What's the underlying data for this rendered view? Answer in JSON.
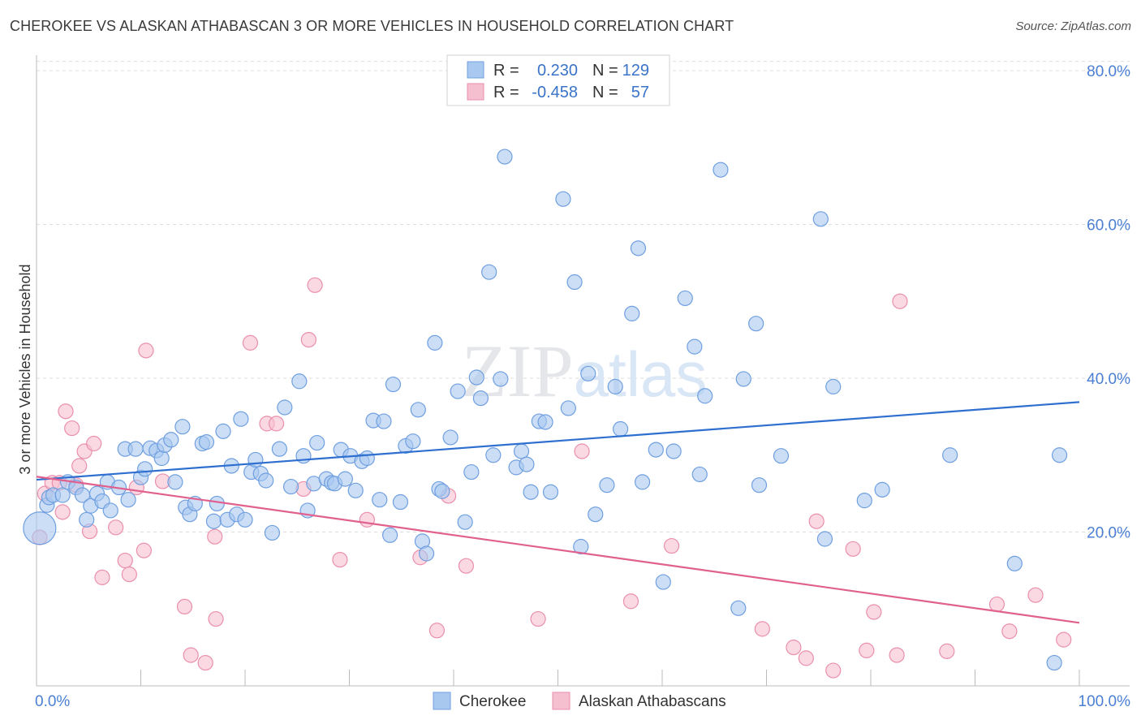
{
  "title": "CHEROKEE VS ALASKAN ATHABASCAN 3 OR MORE VEHICLES IN HOUSEHOLD CORRELATION CHART",
  "source": "Source: ZipAtlas.com",
  "watermark": "ZIPatlas",
  "colors": {
    "blue_fill": "#a9c8f0",
    "blue_stroke": "#6f9fe0",
    "blue_line": "#2f6fd0",
    "pink_fill": "#f6bfd0",
    "pink_stroke": "#ea8fac",
    "pink_line": "#e0608e",
    "tick_color": "#4a7fd4",
    "grid": "#dddddd"
  },
  "legend": {
    "rows": [
      {
        "r_label": "R =",
        "r_value": "0.230",
        "n_label": "N =",
        "n_value": "129"
      },
      {
        "r_label": "R =",
        "r_value": "-0.458",
        "n_label": "N =",
        "n_value": "57"
      }
    ]
  },
  "bottom_legend": [
    "Cherokee",
    "Alaskan Athabascans"
  ],
  "chart_data": {
    "type": "scatter",
    "xlabel": "",
    "ylabel": "3 or more Vehicles in Household",
    "xlim": [
      0,
      100
    ],
    "ylim": [
      0,
      82
    ],
    "x_tick_labels": [
      "0.0%",
      "100.0%"
    ],
    "y_ticks": [
      20,
      40,
      60,
      80
    ],
    "y_tick_labels": [
      "20.0%",
      "40.0%",
      "60.0%",
      "80.0%"
    ],
    "grid": true,
    "legend_position": "top-center",
    "series": [
      {
        "name": "Cherokee",
        "trend": {
          "x0": 0,
          "y0": 26.8,
          "x1": 100,
          "y1": 36.9
        },
        "points": [
          [
            0.3,
            20.5
          ],
          [
            1,
            23.5
          ],
          [
            1.2,
            24.5
          ],
          [
            1.6,
            24.8
          ],
          [
            2.5,
            24.8
          ],
          [
            3,
            26.5
          ],
          [
            3.8,
            25.8
          ],
          [
            4.4,
            24.8
          ],
          [
            4.8,
            21.6
          ],
          [
            5.2,
            23.4
          ],
          [
            5.8,
            25
          ],
          [
            6.3,
            24
          ],
          [
            6.8,
            26.5
          ],
          [
            7.1,
            22.8
          ],
          [
            7.9,
            25.8
          ],
          [
            8.5,
            30.8
          ],
          [
            8.8,
            24.2
          ],
          [
            9.5,
            30.8
          ],
          [
            10,
            27.1
          ],
          [
            10.4,
            28.2
          ],
          [
            10.9,
            30.9
          ],
          [
            11.5,
            30.6
          ],
          [
            12,
            29.6
          ],
          [
            12.3,
            31.3
          ],
          [
            12.9,
            32
          ],
          [
            13.3,
            26.5
          ],
          [
            14,
            33.7
          ],
          [
            14.3,
            23.2
          ],
          [
            14.7,
            22.3
          ],
          [
            15.2,
            23.7
          ],
          [
            15.9,
            31.5
          ],
          [
            16.3,
            31.7
          ],
          [
            17,
            21.4
          ],
          [
            17.3,
            23.7
          ],
          [
            17.9,
            33.1
          ],
          [
            18.3,
            21.6
          ],
          [
            18.7,
            28.6
          ],
          [
            19.2,
            22.3
          ],
          [
            19.6,
            34.7
          ],
          [
            20,
            21.6
          ],
          [
            20.6,
            27.8
          ],
          [
            21,
            29.4
          ],
          [
            21.5,
            27.6
          ],
          [
            22,
            26.7
          ],
          [
            22.6,
            19.9
          ],
          [
            23.3,
            30.8
          ],
          [
            23.8,
            36.2
          ],
          [
            24.4,
            25.9
          ],
          [
            25.2,
            39.6
          ],
          [
            25.6,
            29.9
          ],
          [
            26,
            22.8
          ],
          [
            26.6,
            26.3
          ],
          [
            26.9,
            31.6
          ],
          [
            27.8,
            26.9
          ],
          [
            28.3,
            26.4
          ],
          [
            28.6,
            26.3
          ],
          [
            29.2,
            30.7
          ],
          [
            29.6,
            26.9
          ],
          [
            30.1,
            29.9
          ],
          [
            30.6,
            25.4
          ],
          [
            31.2,
            29.2
          ],
          [
            31.7,
            29.6
          ],
          [
            32.3,
            34.5
          ],
          [
            32.9,
            24.2
          ],
          [
            33.3,
            34.4
          ],
          [
            33.9,
            19.6
          ],
          [
            34.2,
            39.2
          ],
          [
            34.9,
            23.9
          ],
          [
            35.4,
            31.2
          ],
          [
            36.1,
            31.8
          ],
          [
            36.6,
            35.9
          ],
          [
            37,
            18.8
          ],
          [
            37.4,
            17.2
          ],
          [
            38.2,
            44.6
          ],
          [
            38.6,
            25.6
          ],
          [
            38.9,
            25.3
          ],
          [
            39.7,
            32.3
          ],
          [
            40.4,
            38.3
          ],
          [
            41.1,
            21.3
          ],
          [
            41.7,
            27.8
          ],
          [
            42.2,
            40.1
          ],
          [
            42.6,
            37.4
          ],
          [
            43.4,
            53.8
          ],
          [
            43.8,
            30
          ],
          [
            44.5,
            39.9
          ],
          [
            44.9,
            68.8
          ],
          [
            46,
            28.4
          ],
          [
            46.5,
            30.5
          ],
          [
            47,
            28.8
          ],
          [
            47.4,
            25.2
          ],
          [
            48.2,
            34.4
          ],
          [
            48.8,
            34.3
          ],
          [
            49.3,
            25.2
          ],
          [
            50.5,
            63.3
          ],
          [
            51,
            36.1
          ],
          [
            51.6,
            52.5
          ],
          [
            52.2,
            18.1
          ],
          [
            52.9,
            40.6
          ],
          [
            53.6,
            22.3
          ],
          [
            54.7,
            26.1
          ],
          [
            55.5,
            38.9
          ],
          [
            56,
            33.4
          ],
          [
            57.1,
            48.4
          ],
          [
            57.7,
            56.9
          ],
          [
            58.1,
            26.5
          ],
          [
            59.4,
            30.7
          ],
          [
            60.1,
            13.5
          ],
          [
            61.1,
            30.5
          ],
          [
            62.2,
            50.4
          ],
          [
            63.1,
            44.1
          ],
          [
            63.6,
            27.5
          ],
          [
            64.1,
            37.7
          ],
          [
            65.6,
            67.1
          ],
          [
            67.3,
            10.1
          ],
          [
            67.8,
            39.9
          ],
          [
            69,
            47.1
          ],
          [
            69.3,
            26.1
          ],
          [
            71.4,
            29.9
          ],
          [
            75.2,
            60.7
          ],
          [
            75.6,
            19.1
          ],
          [
            76.4,
            38.9
          ],
          [
            79.4,
            24.1
          ],
          [
            81.1,
            25.5
          ],
          [
            87.6,
            30
          ],
          [
            93.8,
            15.9
          ],
          [
            97.6,
            3
          ],
          [
            98.1,
            30
          ]
        ]
      },
      {
        "name": "Alaskan Athabascans",
        "trend": {
          "x0": 0,
          "y0": 27.2,
          "x1": 100,
          "y1": 8.2
        },
        "points": [
          [
            0.3,
            19.3
          ],
          [
            0.8,
            25
          ],
          [
            1.5,
            26.4
          ],
          [
            2.2,
            26.4
          ],
          [
            2.5,
            22.6
          ],
          [
            2.8,
            35.7
          ],
          [
            3.4,
            33.5
          ],
          [
            3.8,
            26.1
          ],
          [
            4.1,
            28.6
          ],
          [
            4.6,
            30.5
          ],
          [
            5.1,
            20.1
          ],
          [
            5.5,
            31.5
          ],
          [
            6.3,
            14.1
          ],
          [
            7.6,
            20.6
          ],
          [
            8.5,
            16.3
          ],
          [
            8.9,
            14.5
          ],
          [
            9.6,
            25.8
          ],
          [
            10.3,
            17.6
          ],
          [
            10.5,
            43.6
          ],
          [
            12.1,
            26.6
          ],
          [
            14.2,
            10.3
          ],
          [
            14.8,
            4
          ],
          [
            16.2,
            3
          ],
          [
            17.1,
            19.4
          ],
          [
            17.2,
            8.7
          ],
          [
            20.5,
            44.6
          ],
          [
            22.1,
            34.1
          ],
          [
            23,
            34.1
          ],
          [
            25.6,
            25.6
          ],
          [
            26.1,
            45
          ],
          [
            26.7,
            52.1
          ],
          [
            29.1,
            16.4
          ],
          [
            31.7,
            21.6
          ],
          [
            36.8,
            16.7
          ],
          [
            38.4,
            7.2
          ],
          [
            39.5,
            24.7
          ],
          [
            41.2,
            15.6
          ],
          [
            48.1,
            8.7
          ],
          [
            52.3,
            30.5
          ],
          [
            57,
            11
          ],
          [
            60.9,
            18.2
          ],
          [
            69.6,
            7.4
          ],
          [
            72.6,
            5
          ],
          [
            73.8,
            3.6
          ],
          [
            74.8,
            21.4
          ],
          [
            76.4,
            2
          ],
          [
            78.3,
            17.8
          ],
          [
            79.6,
            4.6
          ],
          [
            80.3,
            9.6
          ],
          [
            82.5,
            4
          ],
          [
            82.8,
            50
          ],
          [
            87.3,
            4.5
          ],
          [
            92.1,
            10.6
          ],
          [
            93.3,
            7.1
          ],
          [
            95.8,
            11.8
          ],
          [
            98.5,
            6
          ]
        ]
      }
    ]
  }
}
